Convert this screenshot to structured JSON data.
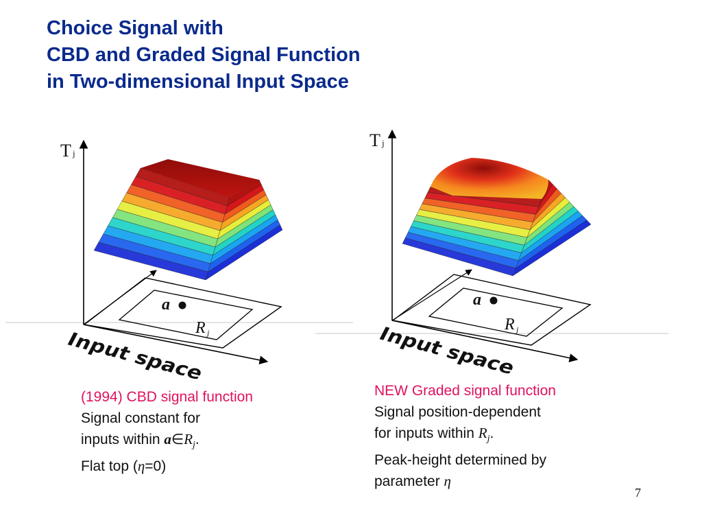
{
  "title": {
    "line1": "Choice Signal with",
    "line2": "CBD and Graded Signal Function",
    "line3": "in Two-dimensional Input Space"
  },
  "left_figure": {
    "axis_label": "T",
    "axis_subscript": "j",
    "point_label": "a",
    "region_label": "R",
    "region_subscript": "j",
    "plane_label": "Input space"
  },
  "right_figure": {
    "axis_label": "T",
    "axis_subscript": "j",
    "point_label": "a",
    "region_label": "R",
    "region_subscript": "j",
    "plane_label": "Input space"
  },
  "left_caption": {
    "line1": "(1994) CBD signal function",
    "line2": "Signal constant for",
    "line3_text": "inputs within ",
    "line3_math": "a",
    "line3_in": "∈",
    "line3_R": "R",
    "line3_sub": "j",
    "line3_end": ".",
    "line4_text": "Flat top (",
    "line4_eta": "η",
    "line4_end": "=0)"
  },
  "right_caption": {
    "line1": "NEW Graded signal function",
    "line2": "Signal position-dependent",
    "line3_text": "for inputs within ",
    "line3_R": "R",
    "line3_sub": "j",
    "line3_end": ".",
    "line4": "Peak-height determined by",
    "line5_text": "parameter ",
    "line5_eta": "η"
  },
  "page_number": "7",
  "colors": {
    "title": "#0a2a8c",
    "highlight": "#e0115f",
    "band_colors": [
      "#1c2fd6",
      "#1e62f0",
      "#1aa4f2",
      "#22d3c8",
      "#7de37a",
      "#e6ee3a",
      "#f6a623",
      "#f05a1c",
      "#d8161a",
      "#b3120f"
    ]
  }
}
